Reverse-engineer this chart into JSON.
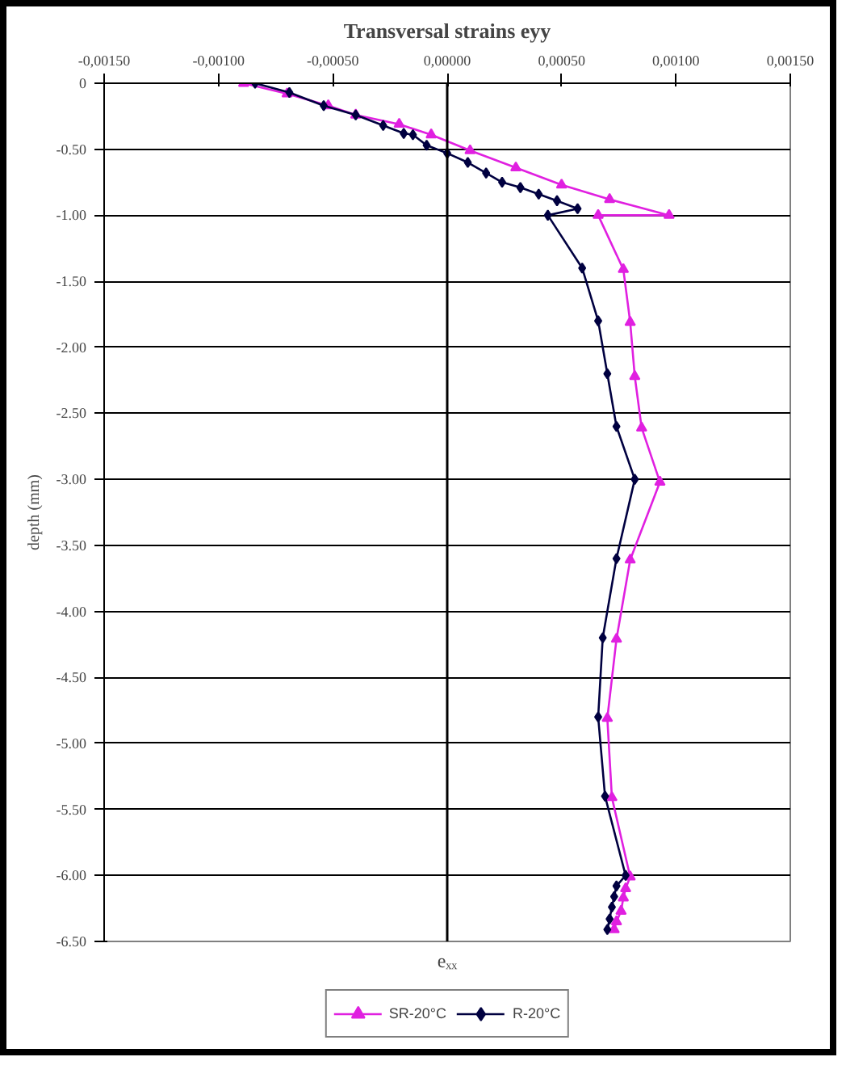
{
  "chart_data": {
    "type": "line",
    "title": "Transversal strains eyy",
    "xlabel": "eₓₓ",
    "ylabel": "depth (mm)",
    "series": [
      {
        "name": "SR-20°C",
        "color": "#e020e0",
        "marker": "triangle",
        "x": [
          -0.00089,
          -0.0007,
          -0.00052,
          -0.0004,
          -0.00021,
          -7e-05,
          0.0001,
          0.0003,
          0.0005,
          0.00071,
          0.00097,
          0.00066,
          0.00077,
          0.0008,
          0.00082,
          0.00085,
          0.00093,
          0.0008,
          0.00074,
          0.0007,
          0.00072,
          0.0008,
          0.00078,
          0.00077,
          0.00076,
          0.00074,
          0.00073
        ],
        "values": [
          0,
          -0.08,
          -0.17,
          -0.24,
          -0.31,
          -0.39,
          -0.51,
          -0.64,
          -0.77,
          -0.88,
          -1.0,
          -1.0,
          -1.41,
          -1.81,
          -2.22,
          -2.61,
          -3.02,
          -3.61,
          -4.21,
          -4.81,
          -5.41,
          -6.01,
          -6.1,
          -6.17,
          -6.27,
          -6.35,
          -6.41
        ]
      },
      {
        "name": "R-20°C",
        "color": "#000040",
        "marker": "diamond",
        "x": [
          -0.00084,
          -0.00069,
          -0.00054,
          -0.0004,
          -0.00028,
          -0.00019,
          -0.00015,
          -9e-05,
          0,
          9e-05,
          0.00017,
          0.00024,
          0.00032,
          0.0004,
          0.00048,
          0.00057,
          0.00044,
          0.00059,
          0.00066,
          0.0007,
          0.00074,
          0.00082,
          0.00074,
          0.00068,
          0.00066,
          0.00069,
          0.00078,
          0.00074,
          0.00073,
          0.00072,
          0.00071,
          0.0007
        ],
        "values": [
          0,
          -0.07,
          -0.17,
          -0.24,
          -0.32,
          -0.38,
          -0.39,
          -0.47,
          -0.53,
          -0.6,
          -0.68,
          -0.75,
          -0.79,
          -0.84,
          -0.89,
          -0.95,
          -1.0,
          -1.4,
          -1.8,
          -2.2,
          -2.6,
          -3.0,
          -3.6,
          -4.2,
          -4.8,
          -5.4,
          -6.0,
          -6.08,
          -6.16,
          -6.24,
          -6.33,
          -6.41
        ]
      }
    ],
    "xlim": [
      -0.0015,
      0.0015
    ],
    "xticks": [
      {
        "value": -0.0015,
        "label": "-0,00150"
      },
      {
        "value": -0.001,
        "label": "-0,00100"
      },
      {
        "value": -0.0005,
        "label": "-0,00050"
      },
      {
        "value": 0,
        "label": "0,00000"
      },
      {
        "value": 0.0005,
        "label": "0,00050"
      },
      {
        "value": 0.001,
        "label": "0,00100"
      },
      {
        "value": 0.0015,
        "label": "0,00150"
      }
    ],
    "ylim": [
      -6.5,
      0
    ],
    "yticks": [
      {
        "value": 0,
        "label": "0"
      },
      {
        "value": -0.5,
        "label": "-0.50"
      },
      {
        "value": -1,
        "label": "-1.00"
      },
      {
        "value": -1.5,
        "label": "-1.50"
      },
      {
        "value": -2,
        "label": "-2.00"
      },
      {
        "value": -2.5,
        "label": "-2.50"
      },
      {
        "value": -3,
        "label": "-3.00"
      },
      {
        "value": -3.5,
        "label": "-3.50"
      },
      {
        "value": -4,
        "label": "-4.00"
      },
      {
        "value": -4.5,
        "label": "-4.50"
      },
      {
        "value": -5,
        "label": "-5.00"
      },
      {
        "value": -5.5,
        "label": "-5.50"
      },
      {
        "value": -6,
        "label": "-6.00"
      },
      {
        "value": -6.5,
        "label": "-6.50"
      }
    ],
    "grid": "y",
    "legend": "bottom",
    "line_style": "solid"
  }
}
